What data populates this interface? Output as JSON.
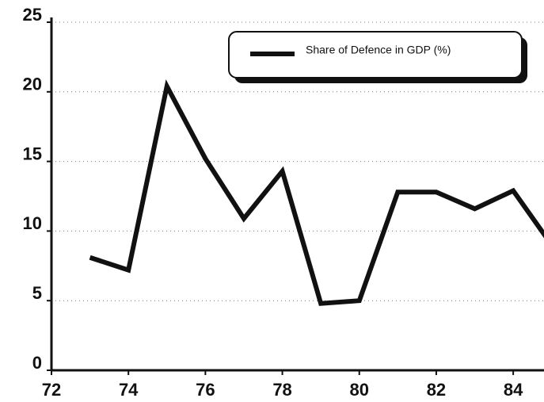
{
  "chart_data": {
    "type": "line",
    "x": [
      73,
      74,
      75,
      76,
      77,
      78,
      79,
      80,
      81,
      82,
      83,
      84,
      85
    ],
    "series": [
      {
        "name": "Share of Defence in GDP (%)",
        "color": "#111111",
        "values": [
          8.1,
          7.2,
          20.4,
          15.2,
          10.9,
          14.3,
          4.8,
          5.0,
          12.8,
          12.8,
          11.6,
          12.9,
          9.0
        ]
      }
    ],
    "xlim": [
      72,
      84.8
    ],
    "xticks": [
      72,
      74,
      76,
      78,
      80,
      82,
      84
    ],
    "ylim": [
      0,
      25
    ],
    "yticks": [
      0,
      5,
      10,
      15,
      20,
      25
    ],
    "grid": true,
    "legend": "upper right"
  }
}
